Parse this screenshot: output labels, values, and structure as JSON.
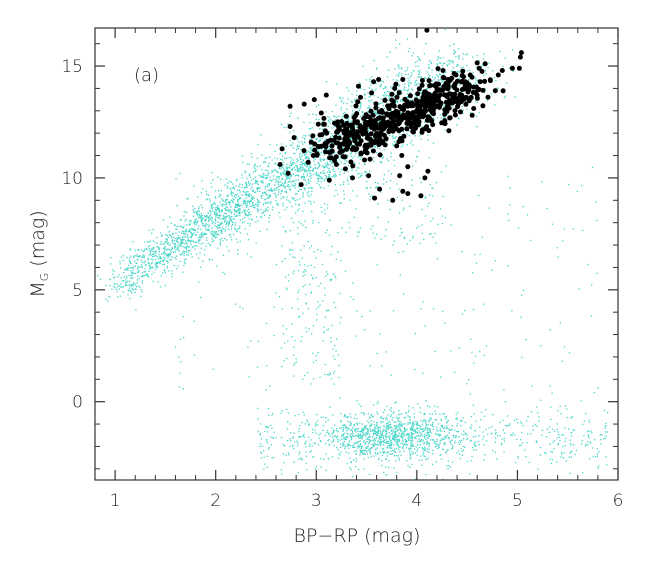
{
  "chart_data": {
    "type": "scatter",
    "panel_label": "(a)",
    "xlabel": "BP−RP (mag)",
    "ylabel": "M",
    "ylabel_subscript": "G",
    "ylabel_unit": " (mag)",
    "xlim": [
      0.8,
      6.0
    ],
    "ylim": [
      16.7,
      -3.5
    ],
    "y_inverted": true,
    "x_ticks": [
      1,
      2,
      3,
      4,
      5,
      6
    ],
    "x_tick_labels": [
      "1",
      "2",
      "3",
      "4",
      "5",
      "6"
    ],
    "y_ticks": [
      0,
      5,
      10,
      15
    ],
    "y_tick_labels": [
      "0",
      "5",
      "10",
      "15"
    ],
    "grid": false,
    "series": [
      {
        "style": "small-dots",
        "color": "#48d6c8",
        "note_regions": [
          {
            "kind": "main-sequence",
            "x_from": 1.0,
            "x_to": 4.4,
            "y_from": 5.3,
            "y_to": 14.8,
            "count": 3200
          },
          {
            "kind": "giant-branch-clump",
            "x_from": 2.2,
            "x_to": 5.9,
            "y_from": -2.5,
            "y_to": 0.3,
            "count": 1500
          },
          {
            "kind": "subgiants",
            "x_from": 1.6,
            "x_to": 5.8,
            "y_from": 0.5,
            "y_to": 11.0,
            "count": 500
          }
        ]
      },
      {
        "style": "filled-circles",
        "color": "#000000",
        "points": [
          [
            3.76,
            9.0
          ],
          [
            3.58,
            9.1
          ],
          [
            3.86,
            9.4
          ],
          [
            3.63,
            9.5
          ],
          [
            4.04,
            9.2
          ],
          [
            3.91,
            9.3
          ],
          [
            2.85,
            9.7
          ],
          [
            3.13,
            9.9
          ],
          [
            3.36,
            10.0
          ],
          [
            3.52,
            10.1
          ],
          [
            3.83,
            10.1
          ],
          [
            4.08,
            10.0
          ],
          [
            2.72,
            10.2
          ],
          [
            3.91,
            10.5
          ],
          [
            4.11,
            10.3
          ],
          [
            2.64,
            10.6
          ],
          [
            2.92,
            10.7
          ],
          [
            3.2,
            10.6
          ],
          [
            3.15,
            10.9
          ],
          [
            2.97,
            11.0
          ],
          [
            3.85,
            11.0
          ],
          [
            2.66,
            11.3
          ],
          [
            3.03,
            11.4
          ],
          [
            2.95,
            11.6
          ],
          [
            2.78,
            11.8
          ],
          [
            2.74,
            12.3
          ],
          [
            3.02,
            12.4
          ],
          [
            3.09,
            12.1
          ],
          [
            2.74,
            13.2
          ],
          [
            2.88,
            13.3
          ],
          [
            3.05,
            12.9
          ],
          [
            3.1,
            13.7
          ],
          [
            2.98,
            13.5
          ],
          [
            4.54,
            13.6
          ],
          [
            4.78,
            13.9
          ],
          [
            4.81,
            14.6
          ],
          [
            4.44,
            14.3
          ],
          [
            4.63,
            14.3
          ],
          [
            4.85,
            14.8
          ],
          [
            4.95,
            14.9
          ],
          [
            5.02,
            14.9
          ],
          [
            5.03,
            15.4
          ],
          [
            5.04,
            15.6
          ],
          [
            4.68,
            15.1
          ],
          [
            4.53,
            14.6
          ],
          [
            4.62,
            14.9
          ],
          [
            4.55,
            12.8
          ],
          [
            4.1,
            16.6
          ],
          [
            3.57,
            14.3
          ],
          [
            3.62,
            14.4
          ],
          [
            3.42,
            14.1
          ],
          [
            3.86,
            14.4
          ],
          [
            3.78,
            14.0
          ],
          [
            4.09,
            13.4
          ],
          [
            4.31,
            14.4
          ],
          [
            4.38,
            14.2
          ],
          [
            4.26,
            14.8
          ],
          [
            3.55,
            13.8
          ],
          [
            3.44,
            13.6
          ]
        ],
        "note_cluster": {
          "center_x": 3.6,
          "center_y": 12.5,
          "count": 520
        }
      }
    ]
  }
}
